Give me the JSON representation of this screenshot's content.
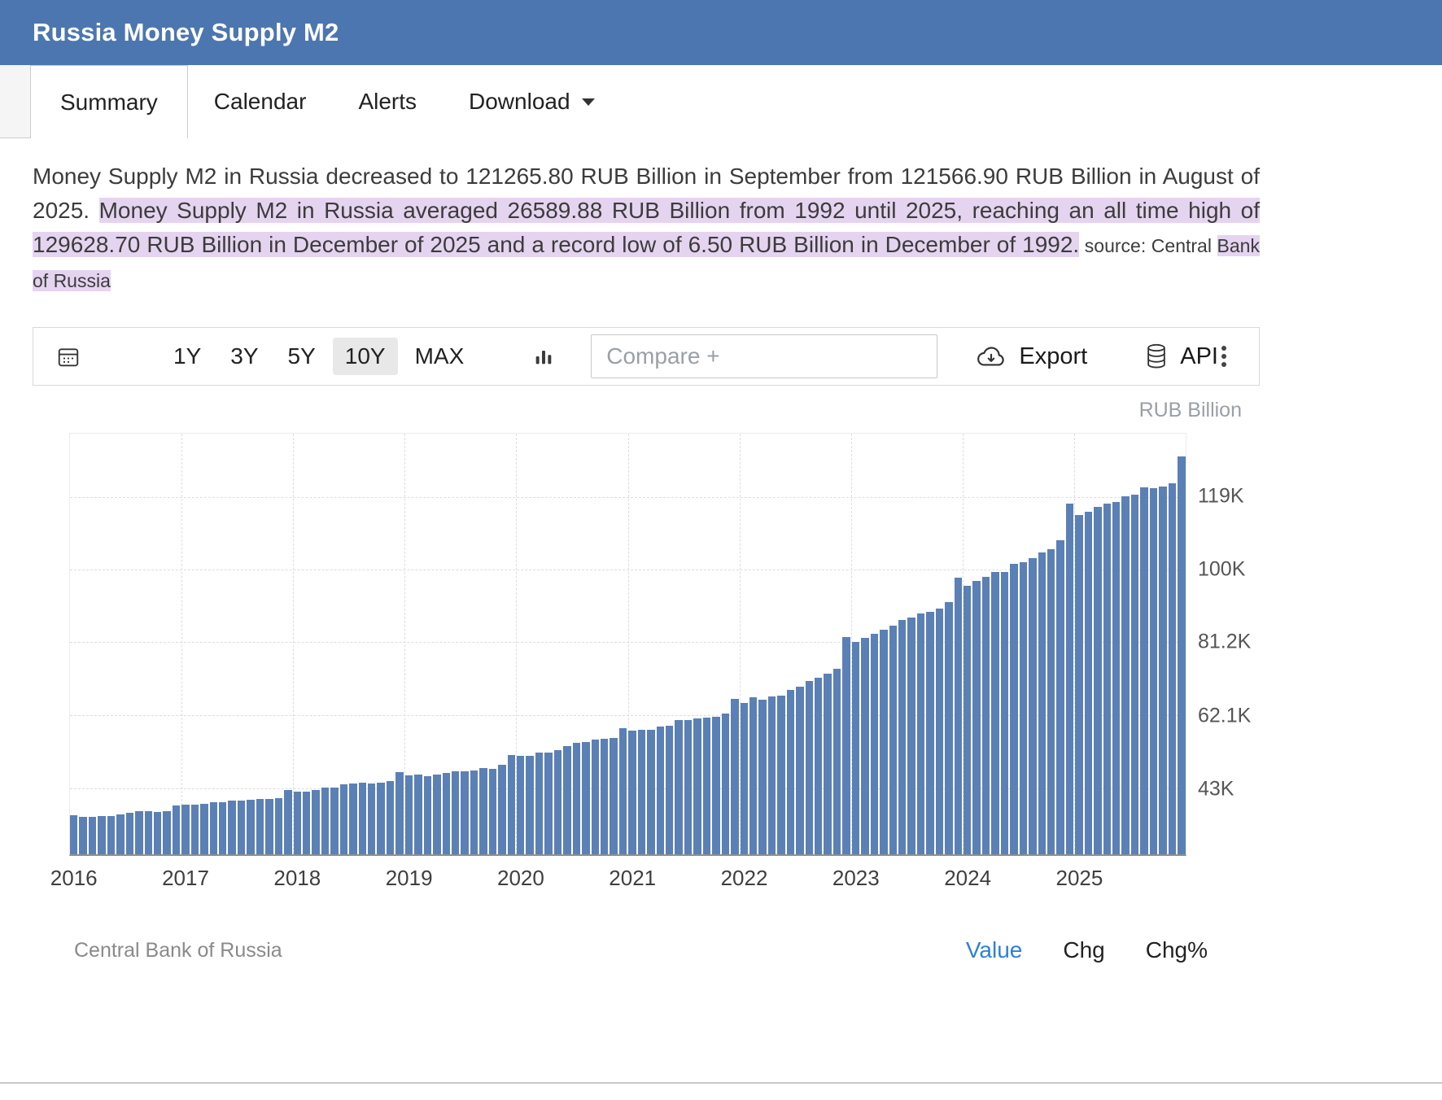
{
  "header": {
    "title": "Russia Money Supply M2",
    "bg_color": "#4c76af"
  },
  "tabs": [
    {
      "label": "Summary",
      "active": true
    },
    {
      "label": "Calendar",
      "active": false
    },
    {
      "label": "Alerts",
      "active": false
    },
    {
      "label": "Download",
      "active": false,
      "has_dropdown": true
    }
  ],
  "summary": {
    "segments": [
      {
        "text": "Money Supply M2 in Russia decreased to 121265.80 RUB Billion in September from 121566.90 RUB Billion in August of 2025. ",
        "highlight": false,
        "small": false
      },
      {
        "text": "Money Supply M2 in Russia averaged 26589.88 RUB Billion from 1992 until 2025, reaching an all time high of 129628.70 RUB Billion in December of 2025 and a record low of 6.50 RUB Billion in December of 1992.",
        "highlight": true,
        "small": false
      },
      {
        "text": " source: Central ",
        "highlight": false,
        "small": true
      },
      {
        "text": "Bank of Russia",
        "highlight": true,
        "small": true
      }
    ]
  },
  "toolbar": {
    "calendar_icon": "calendar-icon",
    "ranges": [
      {
        "label": "1Y",
        "selected": false
      },
      {
        "label": "3Y",
        "selected": false
      },
      {
        "label": "5Y",
        "selected": false
      },
      {
        "label": "10Y",
        "selected": true
      },
      {
        "label": "MAX",
        "selected": false
      }
    ],
    "chart_type_icon": "bar-chart-icon",
    "compare": {
      "placeholder": "Compare +",
      "value": ""
    },
    "export_label": "Export",
    "api_label": "API",
    "more_options_icon": "kebab-menu-icon"
  },
  "chart_footer": {
    "source": "Central Bank of Russia",
    "views": [
      {
        "label": "Value",
        "active": true
      },
      {
        "label": "Chg",
        "active": false
      },
      {
        "label": "Chg%",
        "active": false
      }
    ]
  },
  "colors": {
    "header_bg": "#4c76af",
    "bar": "#5b80b5",
    "highlight": "#e5d4f0",
    "active_link": "#2e7fd6"
  },
  "chart_data": {
    "type": "bar",
    "title": "Russia Money Supply M2",
    "xlabel": "",
    "ylabel": "RUB Billion",
    "unit": "RUB Billion",
    "frequency": "monthly",
    "bar_color": "#5b80b5",
    "grid": true,
    "legend": false,
    "ymin": 25700,
    "ymax": 135500,
    "yticks": [
      {
        "value": 43000,
        "label": "43K"
      },
      {
        "value": 62100,
        "label": "62.1K"
      },
      {
        "value": 81200,
        "label": "81.2K"
      },
      {
        "value": 100000,
        "label": "100K"
      },
      {
        "value": 119000,
        "label": "119K"
      }
    ],
    "years": [
      "2016",
      "2017",
      "2018",
      "2019",
      "2020",
      "2021",
      "2022",
      "2023",
      "2024",
      "2025"
    ],
    "values_by_year": {
      "2016": [
        35809,
        35564,
        35440,
        35665,
        35759,
        36146,
        36630,
        36919,
        36868,
        36818,
        37037,
        38418
      ],
      "2017": [
        38555,
        38714,
        38974,
        39224,
        39355,
        39623,
        39769,
        39967,
        40069,
        40109,
        40459,
        42442
      ],
      "2018": [
        41982,
        42045,
        42377,
        43122,
        43127,
        43880,
        44271,
        44369,
        44255,
        44331,
        44892,
        47109
      ],
      "2019": [
        46297,
        46498,
        46141,
        46436,
        46857,
        47349,
        47352,
        47584,
        48267,
        48083,
        48997,
        51660
      ],
      "2020": [
        51314,
        51356,
        52297,
        52329,
        52856,
        53927,
        54761,
        55031,
        55714,
        55789,
        56085,
        58652
      ],
      "2021": [
        57879,
        58283,
        58253,
        58974,
        59200,
        60721,
        60696,
        61068,
        61325,
        61551,
        62529,
        66252
      ],
      "2022": [
        65310,
        66657,
        65971,
        66835,
        67035,
        68633,
        69551,
        70908,
        71738,
        72936,
        74073,
        82388
      ],
      "2023": [
        81173,
        82206,
        83213,
        84334,
        85444,
        86969,
        87560,
        88650,
        89047,
        89804,
        91602,
        98009
      ],
      "2024": [
        95855,
        96959,
        98129,
        99430,
        99379,
        101532,
        101937,
        103089,
        104561,
        105402,
        107655,
        117268
      ],
      "2025": [
        114286,
        115141,
        116409,
        117185,
        117646,
        119070,
        119559,
        121567,
        121266,
        121800,
        122600,
        129629
      ]
    }
  }
}
